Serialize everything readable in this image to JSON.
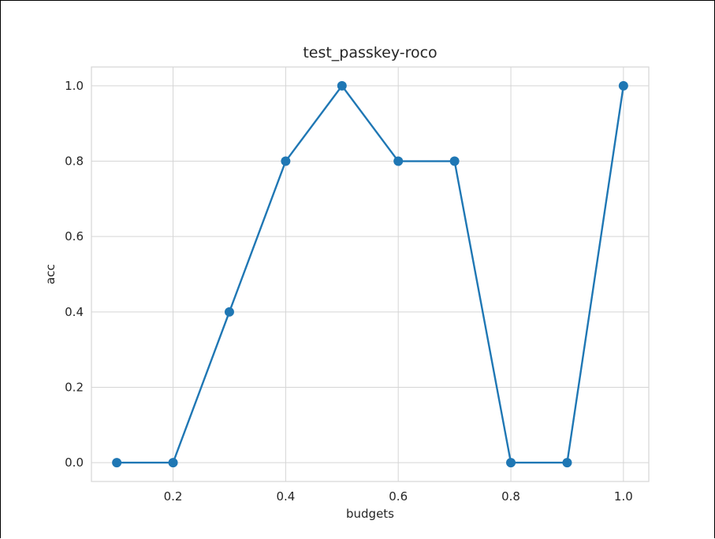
{
  "chart_data": {
    "type": "line",
    "title": "test_passkey-roco",
    "xlabel": "budgets",
    "ylabel": "acc",
    "x": [
      0.1,
      0.2,
      0.3,
      0.4,
      0.5,
      0.6,
      0.7,
      0.8,
      0.9,
      1.0
    ],
    "series": [
      {
        "values": [
          0.0,
          0.0,
          0.4,
          0.8,
          1.0,
          0.8,
          0.8,
          0.0,
          0.0,
          1.0
        ],
        "color": "#1f77b4",
        "marker": "circle"
      }
    ],
    "xlim": [
      0.055,
      1.045
    ],
    "ylim": [
      -0.05,
      1.05
    ],
    "xticks": [
      0.2,
      0.4,
      0.6,
      0.8,
      1.0
    ],
    "xtick_labels": [
      "0.2",
      "0.4",
      "0.6",
      "0.8",
      "1.0"
    ],
    "yticks": [
      0.0,
      0.2,
      0.4,
      0.6,
      0.8,
      1.0
    ],
    "ytick_labels": [
      "0.0",
      "0.2",
      "0.4",
      "0.6",
      "0.8",
      "1.0"
    ],
    "grid": true,
    "style": {
      "grid_color": "#d5d5d5",
      "spine_color": "#d5d5d5",
      "text_color": "#262626",
      "background": "#ffffff"
    }
  }
}
